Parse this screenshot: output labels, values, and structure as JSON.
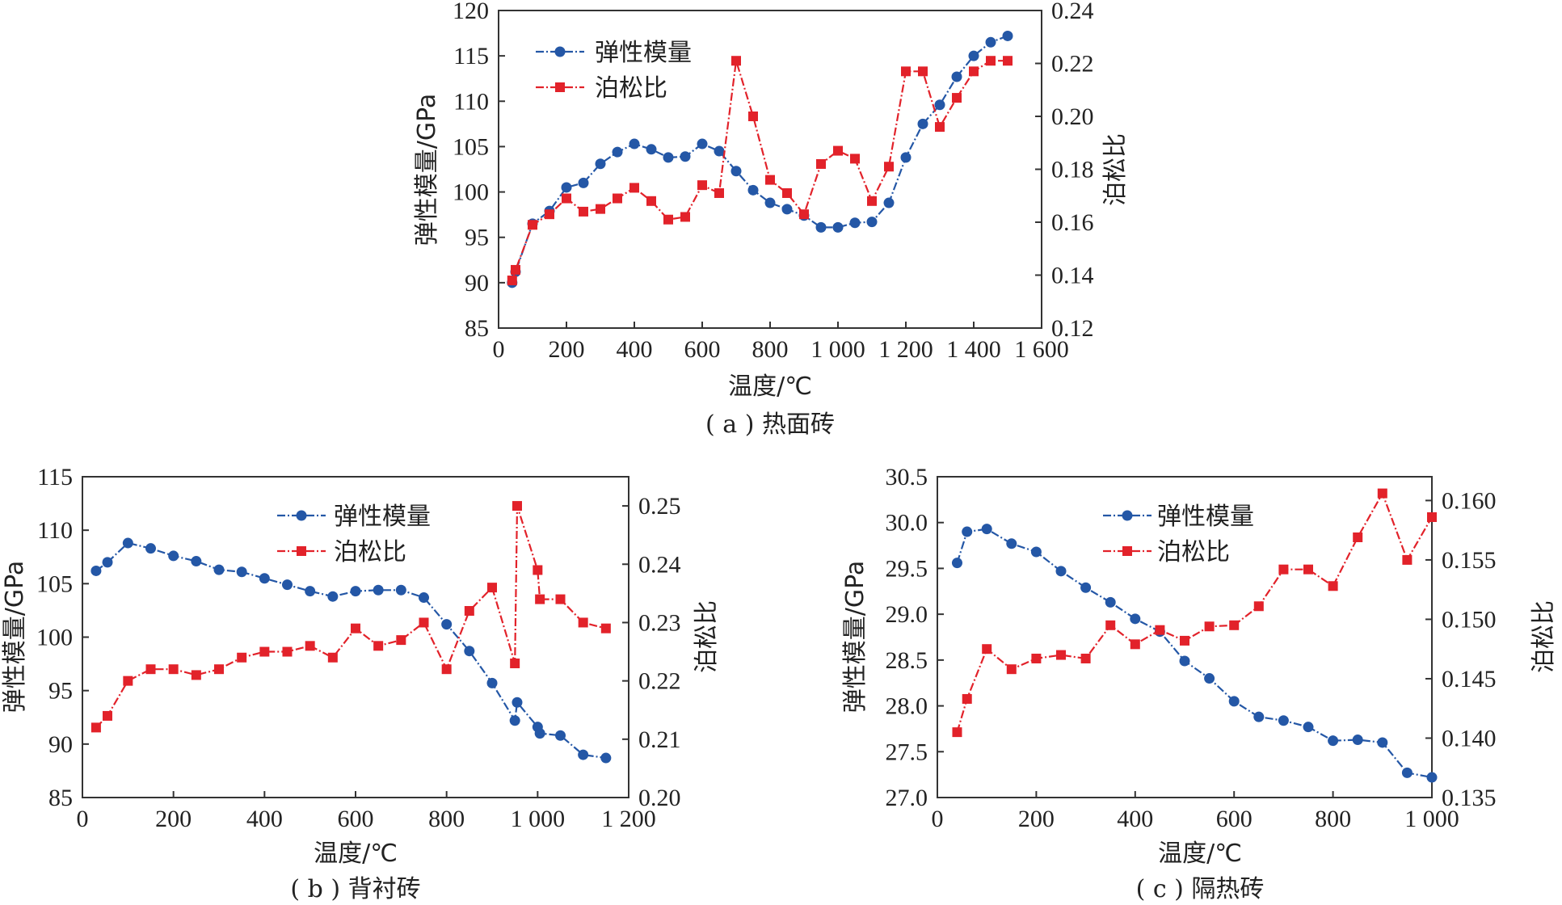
{
  "colors": {
    "blue": "#2457a6",
    "red": "#e2222a"
  },
  "chart_data": [
    {
      "type": "line",
      "caption": "( a ) 热面砖",
      "xlabel": "温度/℃",
      "ylabel_left": "弹性模量/GPa",
      "ylabel_right": "泊松比",
      "xlim": [
        0,
        1600
      ],
      "ylim_left": [
        85,
        120
      ],
      "ylim_right": [
        0.12,
        0.24
      ],
      "xticks": [
        0,
        200,
        400,
        600,
        800,
        1000,
        1200,
        1400,
        1600
      ],
      "xtick_labels": [
        "0",
        "200",
        "400",
        "600",
        "800",
        "1 000",
        "1 200",
        "1 400",
        "1 600"
      ],
      "yticks_left": [
        85,
        90,
        95,
        100,
        105,
        110,
        115,
        120
      ],
      "yticks_left_labels": [
        "85",
        "90",
        "95",
        "100",
        "105",
        "110",
        "115",
        "120"
      ],
      "yticks_right": [
        0.12,
        0.14,
        0.16,
        0.18,
        0.2,
        0.22,
        0.24
      ],
      "yticks_right_labels": [
        "0.12",
        "0.14",
        "0.16",
        "0.18",
        "0.20",
        "0.22",
        "0.24"
      ],
      "legend": [
        "弹性模量",
        "泊松比"
      ],
      "legend_position": "top-left",
      "series": [
        {
          "name": "弹性模量",
          "axis": "left",
          "marker": "circle",
          "x": [
            40,
            50,
            100,
            150,
            200,
            250,
            300,
            350,
            400,
            450,
            500,
            550,
            600,
            650,
            700,
            750,
            800,
            850,
            900,
            950,
            1000,
            1050,
            1100,
            1150,
            1200,
            1250,
            1300,
            1350,
            1400,
            1450,
            1500
          ],
          "y": [
            90.0,
            91.2,
            96.5,
            97.9,
            100.5,
            101.0,
            103.1,
            104.4,
            105.3,
            104.7,
            103.8,
            103.9,
            105.3,
            104.5,
            102.3,
            100.2,
            98.8,
            98.1,
            97.4,
            96.1,
            96.1,
            96.6,
            96.7,
            98.8,
            103.8,
            107.5,
            109.6,
            112.7,
            115.0,
            116.5,
            117.2
          ]
        },
        {
          "name": "泊松比",
          "axis": "right",
          "marker": "square",
          "x": [
            40,
            50,
            100,
            150,
            200,
            250,
            300,
            350,
            400,
            450,
            500,
            550,
            600,
            650,
            700,
            750,
            800,
            850,
            900,
            950,
            1000,
            1050,
            1100,
            1150,
            1200,
            1250,
            1300,
            1350,
            1400,
            1450,
            1500
          ],
          "y": [
            0.138,
            0.142,
            0.159,
            0.163,
            0.169,
            0.164,
            0.165,
            0.169,
            0.173,
            0.168,
            0.161,
            0.162,
            0.174,
            0.171,
            0.221,
            0.2,
            0.176,
            0.171,
            0.163,
            0.182,
            0.187,
            0.184,
            0.168,
            0.181,
            0.217,
            0.217,
            0.196,
            0.207,
            0.217,
            0.221,
            0.221
          ]
        }
      ]
    },
    {
      "type": "line",
      "caption": "( b ) 背衬砖",
      "xlabel": "温度/℃",
      "ylabel_left": "弹性模量/GPa",
      "ylabel_right": "泊松比",
      "xlim": [
        0,
        1200
      ],
      "ylim_left": [
        85,
        115
      ],
      "ylim_right": [
        0.2,
        0.255
      ],
      "xticks": [
        0,
        200,
        400,
        600,
        800,
        1000,
        1200
      ],
      "xtick_labels": [
        "0",
        "200",
        "400",
        "600",
        "800",
        "1 000",
        "1 200"
      ],
      "yticks_left": [
        85,
        90,
        95,
        100,
        105,
        110,
        115
      ],
      "yticks_left_labels": [
        "85",
        "90",
        "95",
        "100",
        "105",
        "110",
        "115"
      ],
      "yticks_right": [
        0.2,
        0.21,
        0.22,
        0.23,
        0.24,
        0.25
      ],
      "yticks_right_labels": [
        "0.20",
        "0.21",
        "0.22",
        "0.23",
        "0.24",
        "0.25"
      ],
      "legend": [
        "弹性模量",
        "泊松比"
      ],
      "legend_position": "top-center",
      "series": [
        {
          "name": "弹性模量",
          "axis": "left",
          "marker": "circle",
          "x": [
            30,
            55,
            100,
            150,
            200,
            250,
            300,
            350,
            400,
            450,
            500,
            550,
            600,
            650,
            700,
            750,
            800,
            850,
            900,
            950,
            955,
            1000,
            1005,
            1050,
            1100,
            1150
          ],
          "y": [
            106.2,
            107.0,
            108.8,
            108.3,
            107.6,
            107.1,
            106.3,
            106.1,
            105.5,
            104.9,
            104.3,
            103.8,
            104.3,
            104.4,
            104.4,
            103.7,
            101.2,
            98.7,
            95.7,
            92.2,
            93.9,
            91.6,
            91.0,
            90.8,
            89.0,
            88.7
          ]
        },
        {
          "name": "泊松比",
          "axis": "right",
          "marker": "square",
          "x": [
            30,
            55,
            100,
            150,
            200,
            250,
            300,
            350,
            400,
            450,
            500,
            550,
            600,
            650,
            700,
            750,
            800,
            850,
            900,
            950,
            955,
            1000,
            1005,
            1050,
            1100,
            1150
          ],
          "y": [
            0.212,
            0.214,
            0.22,
            0.222,
            0.222,
            0.221,
            0.222,
            0.224,
            0.225,
            0.225,
            0.226,
            0.224,
            0.229,
            0.226,
            0.227,
            0.23,
            0.222,
            0.232,
            0.236,
            0.223,
            0.25,
            0.239,
            0.234,
            0.234,
            0.23,
            0.229
          ]
        }
      ]
    },
    {
      "type": "line",
      "caption": "( c ) 隔热砖",
      "xlabel": "温度/℃",
      "ylabel_left": "弹性模量/GPa",
      "ylabel_right": "泊松比",
      "xlim": [
        0,
        1000
      ],
      "ylim_left": [
        27.0,
        30.5
      ],
      "ylim_right": [
        0.135,
        0.162
      ],
      "xticks": [
        0,
        200,
        400,
        600,
        800,
        1000
      ],
      "xtick_labels": [
        "0",
        "200",
        "400",
        "600",
        "800",
        "1 000"
      ],
      "yticks_left": [
        27.0,
        27.5,
        28.0,
        28.5,
        29.0,
        29.5,
        30.0,
        30.5
      ],
      "yticks_left_labels": [
        "27.0",
        "27.5",
        "28.0",
        "28.5",
        "29.0",
        "29.5",
        "30.0",
        "30.5"
      ],
      "yticks_right": [
        0.135,
        0.14,
        0.145,
        0.15,
        0.155,
        0.16
      ],
      "yticks_right_labels": [
        "0.135",
        "0.140",
        "0.145",
        "0.150",
        "0.155",
        "0.160"
      ],
      "legend": [
        "弹性模量",
        "泊松比"
      ],
      "legend_position": "top-center",
      "series": [
        {
          "name": "弹性模量",
          "axis": "left",
          "marker": "circle",
          "x": [
            40,
            60,
            100,
            150,
            200,
            250,
            300,
            350,
            400,
            450,
            500,
            550,
            600,
            650,
            700,
            750,
            800,
            850,
            900,
            950,
            1000
          ],
          "y": [
            29.56,
            29.9,
            29.93,
            29.77,
            29.68,
            29.47,
            29.29,
            29.13,
            28.95,
            28.81,
            28.49,
            28.3,
            28.05,
            27.88,
            27.84,
            27.77,
            27.62,
            27.63,
            27.6,
            27.27,
            27.22
          ]
        },
        {
          "name": "泊松比",
          "axis": "right",
          "marker": "square",
          "x": [
            40,
            60,
            100,
            150,
            200,
            250,
            300,
            350,
            400,
            450,
            500,
            550,
            600,
            650,
            700,
            750,
            800,
            850,
            900,
            950,
            1000
          ],
          "y": [
            0.1405,
            0.1433,
            0.1475,
            0.1458,
            0.1467,
            0.147,
            0.1467,
            0.1495,
            0.1479,
            0.1491,
            0.1482,
            0.1494,
            0.1495,
            0.1511,
            0.1542,
            0.1542,
            0.1528,
            0.1569,
            0.1606,
            0.155,
            0.1586
          ]
        }
      ]
    }
  ]
}
